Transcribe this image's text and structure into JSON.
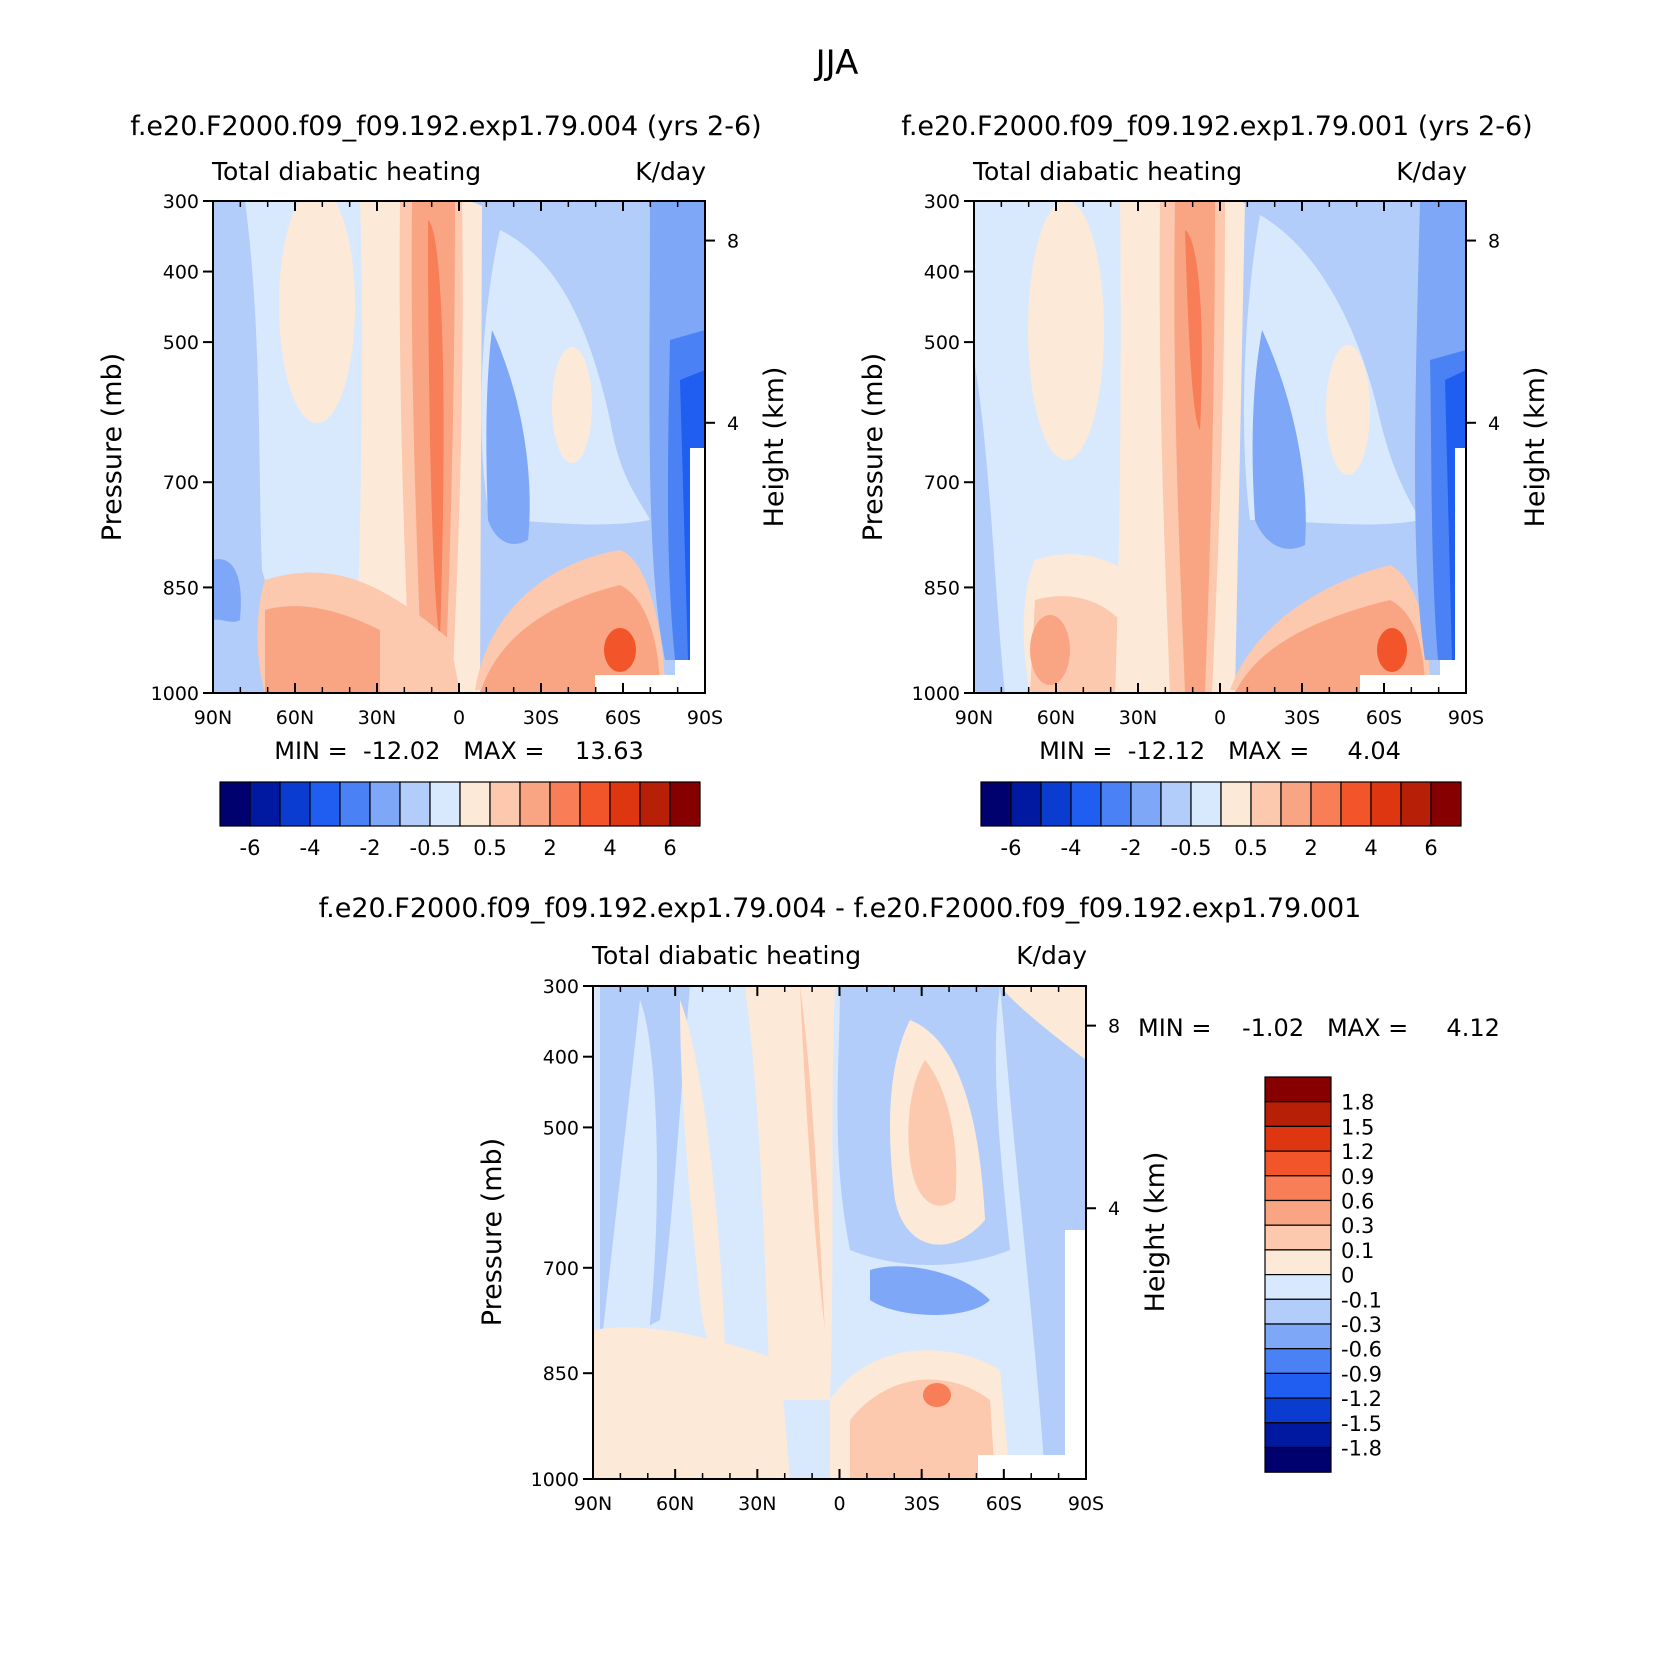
{
  "figure": {
    "title": "JJA"
  },
  "colors": {
    "blue_scale": [
      "#00006e",
      "#0019a0",
      "#0a3ccf",
      "#1f5ef0",
      "#4a82f5",
      "#7ea7f7",
      "#b3cdfb",
      "#d9e9fd"
    ],
    "red_scale": [
      "#fde9d8",
      "#fcc8ae",
      "#f9a584",
      "#f77e56",
      "#f3552a",
      "#de3611",
      "#b71f07",
      "#870000"
    ],
    "missing": "#ffffff"
  },
  "chart_data": [
    {
      "type": "heatmap",
      "panel": "top-left",
      "title": "f.e20.F2000.f09_f09.192.exp1.79.004 (yrs 2-6)",
      "subtitle_left": "Total diabatic heating",
      "subtitle_right": "K/day",
      "xlabel": "",
      "ylabel": "Pressure (mb)",
      "ylabel_right": "Height (km)",
      "x_ticks": [
        "90N",
        "60N",
        "30N",
        "0",
        "30S",
        "60S",
        "90S"
      ],
      "y_ticks": [
        "300",
        "400",
        "500",
        "700",
        "850",
        "1000"
      ],
      "y_right_ticks": [
        "8",
        "4"
      ],
      "ylim": [
        1000,
        300
      ],
      "stats": "MIN =  -12.02   MAX =    13.63",
      "colorbar": {
        "orientation": "horizontal",
        "levels": [
          "-6",
          "-4",
          "-2",
          "-0.5",
          "0.5",
          "2",
          "4",
          "6"
        ]
      }
    },
    {
      "type": "heatmap",
      "panel": "top-right",
      "title": "f.e20.F2000.f09_f09.192.exp1.79.001 (yrs 2-6)",
      "subtitle_left": "Total diabatic heating",
      "subtitle_right": "K/day",
      "xlabel": "",
      "ylabel": "Pressure (mb)",
      "ylabel_right": "Height (km)",
      "x_ticks": [
        "90N",
        "60N",
        "30N",
        "0",
        "30S",
        "60S",
        "90S"
      ],
      "y_ticks": [
        "300",
        "400",
        "500",
        "700",
        "850",
        "1000"
      ],
      "y_right_ticks": [
        "8",
        "4"
      ],
      "ylim": [
        1000,
        300
      ],
      "stats": "MIN =  -12.12   MAX =     4.04",
      "colorbar": {
        "orientation": "horizontal",
        "levels": [
          "-6",
          "-4",
          "-2",
          "-0.5",
          "0.5",
          "2",
          "4",
          "6"
        ]
      }
    },
    {
      "type": "heatmap",
      "panel": "bottom",
      "title": "f.e20.F2000.f09_f09.192.exp1.79.004 - f.e20.F2000.f09_f09.192.exp1.79.001",
      "subtitle_left": "Total diabatic heating",
      "subtitle_right": "K/day",
      "xlabel": "",
      "ylabel": "Pressure (mb)",
      "ylabel_right": "Height (km)",
      "x_ticks": [
        "90N",
        "60N",
        "30N",
        "0",
        "30S",
        "60S",
        "90S"
      ],
      "y_ticks": [
        "300",
        "400",
        "500",
        "700",
        "850",
        "1000"
      ],
      "y_right_ticks": [
        "8",
        "4"
      ],
      "ylim": [
        1000,
        300
      ],
      "stats": "MIN =    -1.02   MAX =     4.12",
      "colorbar": {
        "orientation": "vertical",
        "levels": [
          "1.8",
          "1.5",
          "1.2",
          "0.9",
          "0.6",
          "0.3",
          "0.1",
          "0",
          "-0.1",
          "-0.3",
          "-0.6",
          "-0.9",
          "-1.2",
          "-1.5",
          "-1.8"
        ]
      }
    }
  ]
}
